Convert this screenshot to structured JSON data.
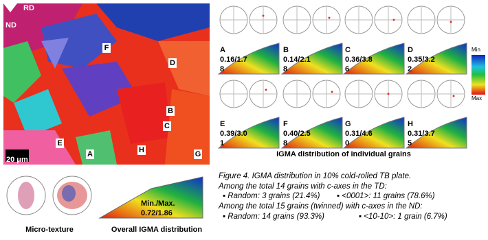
{
  "map": {
    "directions": [
      "RD",
      "ND"
    ],
    "scale_bar": "20 μm",
    "grain_labels": [
      "F",
      "D",
      "B",
      "C",
      "E",
      "A",
      "H",
      "G"
    ]
  },
  "panels": [
    {
      "letter": "A",
      "lines": [
        "0.16/1.7",
        "8"
      ]
    },
    {
      "letter": "B",
      "lines": [
        "0.14/2.1",
        "8"
      ]
    },
    {
      "letter": "C",
      "lines": [
        "0.36/3.8",
        "6"
      ]
    },
    {
      "letter": "D",
      "lines": [
        "0.35/3.2",
        "2"
      ]
    },
    {
      "letter": "E",
      "lines": [
        "0.39/3.0",
        "1"
      ]
    },
    {
      "letter": "F",
      "lines": [
        "0.40/2.5",
        "8"
      ]
    },
    {
      "letter": "G",
      "lines": [
        "0.31/4.6",
        "0"
      ]
    },
    {
      "letter": "H",
      "lines": [
        "0.31/3.7",
        "5"
      ]
    }
  ],
  "legend": {
    "min": "Min",
    "max": "Max"
  },
  "panels_caption": "IGMA distribution of individual grains",
  "overall": {
    "label": "Min./Max.",
    "value": "0.72/1.86"
  },
  "bottom_labels": [
    "Micro-texture",
    "Overall IGMA distribution"
  ],
  "caption": {
    "title": "Figure 4. IGMA distribution in 10% cold-rolled TB plate.",
    "td_intro": "Among the total 14 grains with c-axes in the TD:",
    "td_items": [
      "▪ Random: 3 grains (21.4%)",
      "▪ <0001>: 11 grains (78.6%)"
    ],
    "nd_intro": "Among the total 15 grains (twinned) with c-axes in the ND:",
    "nd_items": [
      "▪ Random: 14 grains (93.3%)",
      "▪ <10-10>: 1 grain (6.7%)"
    ]
  }
}
